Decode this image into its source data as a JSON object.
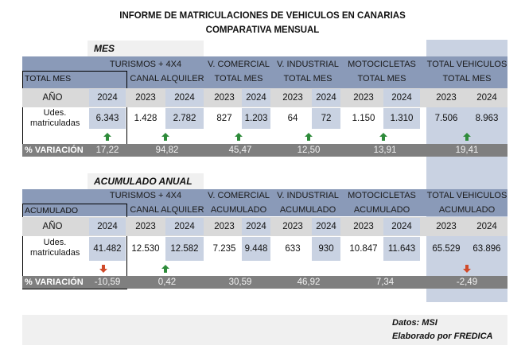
{
  "title_line1": "INFORME DE MATRICULACIONES DE VEHICULOS EN CANARIAS",
  "title_line2": "COMPARATIVA MENSUAL",
  "colors": {
    "header_blue": "#8a9ab8",
    "light_blue": "#c9d2e2",
    "variation_gray": "#7f7f7f",
    "up_arrow": "#2e8b3a",
    "down_arrow": "#d04a2a"
  },
  "mes": {
    "section_title": "MES",
    "total_label": "TOTAL MES",
    "groups": {
      "turismos": {
        "line1": "TURISMOS + 4X4",
        "line2": "CANAL ALQUILER"
      },
      "vcomercial": {
        "line1": "V. COMERCIAL",
        "line2": "TOTAL MES"
      },
      "vindustrial": {
        "line1": "V. INDUSTRIAL",
        "line2": "TOTAL MES"
      },
      "motos": {
        "line1": "MOTOCICLETAS",
        "line2": "TOTAL MES"
      },
      "total": {
        "line1": "TOTAL VEHICULOS",
        "line2": "TOTAL MES"
      }
    },
    "year_label": "AÑO",
    "units_label_1": "Udes.",
    "units_label_2": "matriculadas",
    "years": {
      "totalmes": "2024",
      "alq_a": "2023",
      "alq_b": "2024",
      "vc_a": "2023",
      "vc_b": "2024",
      "vi_a": "2023",
      "vi_b": "2024",
      "mo_a": "2023",
      "mo_b": "2024",
      "tv_a": "2023",
      "tv_b": "2024"
    },
    "values": {
      "totalmes": "6.343",
      "alq_a": "1.428",
      "alq_b": "2.782",
      "vc_a": "827",
      "vc_b": "1.203",
      "vi_a": "64",
      "vi_b": "72",
      "mo_a": "1.150",
      "mo_b": "1.310",
      "tv_a": "7.506",
      "tv_b": "8.963"
    },
    "variation_label": "% VARIACIÓN",
    "variation": {
      "totalmes": "17,22",
      "alq": "94,82",
      "vc": "45,47",
      "vi": "12,50",
      "mo": "13,91",
      "tv": "19,41"
    },
    "trend": {
      "totalmes": "up",
      "alq": "up",
      "vc": "up",
      "vi": "up",
      "mo": "up",
      "tv": "up"
    }
  },
  "acumulado": {
    "section_title": "ACUMULADO ANUAL",
    "total_label": "ACUMULADO",
    "groups": {
      "turismos": {
        "line1": "TURISMOS + 4X4",
        "line2": "CANAL ALQUILER"
      },
      "vcomercial": {
        "line1": "V. COMERCIAL",
        "line2": "ACUMULADO"
      },
      "vindustrial": {
        "line1": "V. INDUSTRIAL",
        "line2": "ACUMULADO"
      },
      "motos": {
        "line1": "MOTOCICLETAS",
        "line2": "ACUMULADO"
      },
      "total": {
        "line1": "TOTAL VEHICULOS",
        "line2": "ACUMULADO"
      }
    },
    "year_label": "AÑO",
    "units_label_1": "Udes.",
    "units_label_2": "matriculadas",
    "years": {
      "totalmes": "2024",
      "alq_a": "2023",
      "alq_b": "2024",
      "vc_a": "2023",
      "vc_b": "2024",
      "vi_a": "2023",
      "vi_b": "2024",
      "mo_a": "2023",
      "mo_b": "2024",
      "tv_a": "2023",
      "tv_b": "2024"
    },
    "values": {
      "totalmes": "41.482",
      "alq_a": "12.530",
      "alq_b": "12.582",
      "vc_a": "7.235",
      "vc_b": "9.448",
      "vi_a": "633",
      "vi_b": "930",
      "mo_a": "10.847",
      "mo_b": "11.643",
      "tv_a": "65.529",
      "tv_b": "63.896"
    },
    "variation_label": "% VARIACIÓN",
    "variation": {
      "totalmes": "-10,59",
      "alq": "0,42",
      "vc": "30,59",
      "vi": "46,92",
      "mo": "7,34",
      "tv": "-2,49"
    },
    "trend": {
      "totalmes": "down",
      "alq": "up",
      "vc": "none",
      "vi": "none",
      "mo": "none",
      "tv": "down"
    }
  },
  "footer": {
    "line1": "Datos: MSI",
    "line2": "Elaborado por  FREDICA"
  }
}
